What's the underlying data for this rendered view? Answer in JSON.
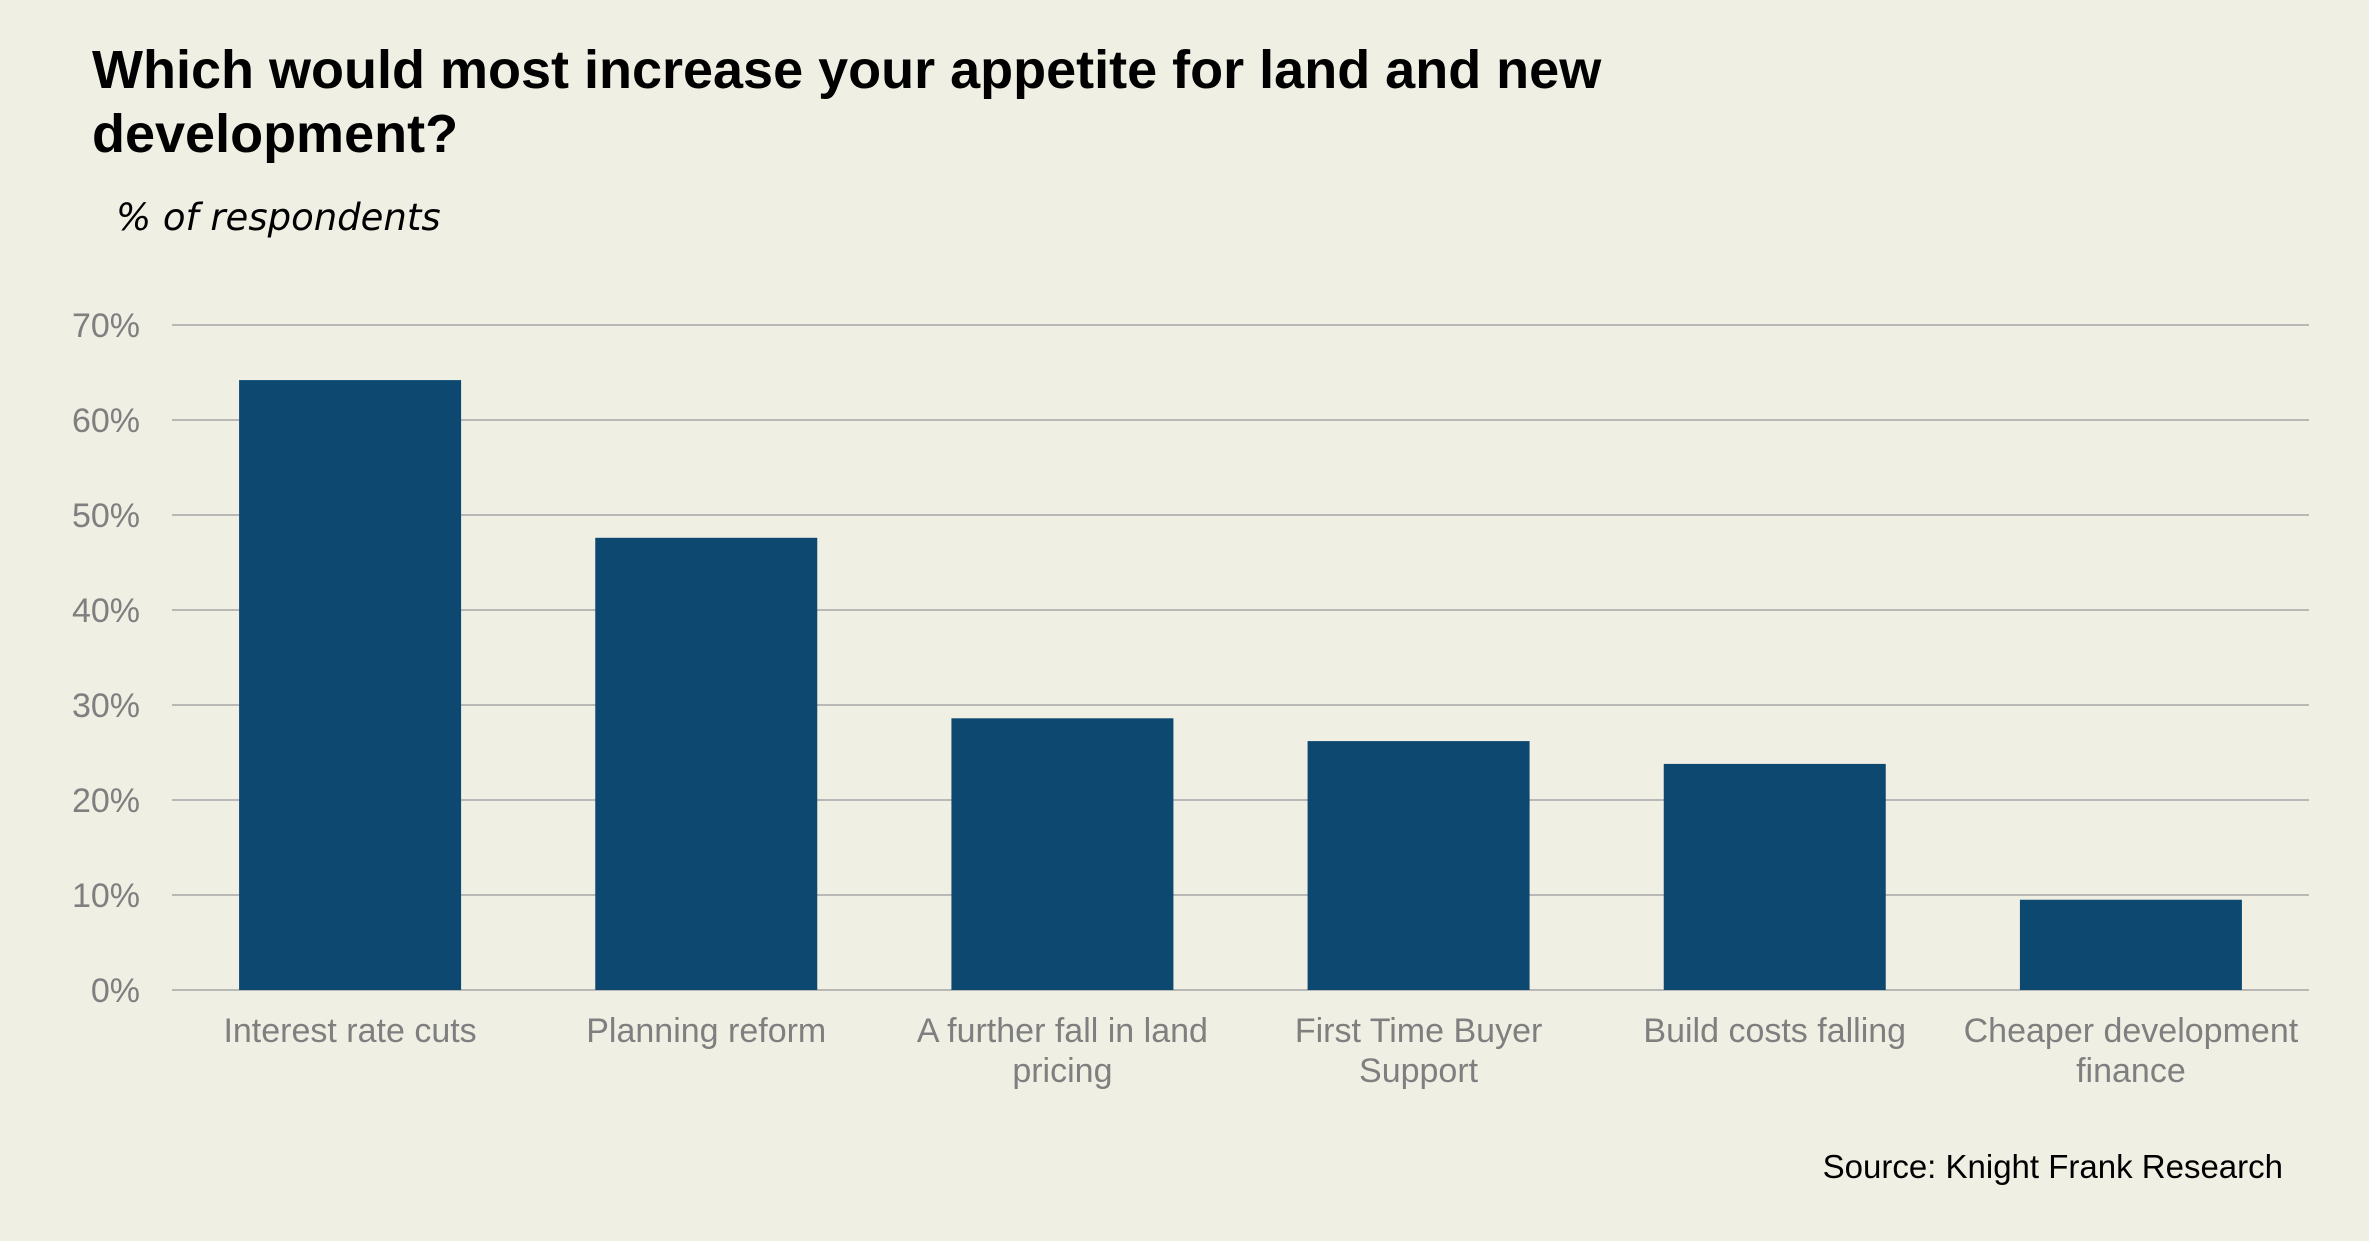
{
  "chart_data": {
    "type": "bar",
    "title": "Which would most increase your appetite for land and new development?",
    "subtitle": "% of respondents",
    "source": "Source: Knight Frank Research",
    "categories": [
      [
        "Interest rate cuts"
      ],
      [
        "Planning reform"
      ],
      [
        "A further fall in land",
        "pricing"
      ],
      [
        "First Time Buyer",
        "Support"
      ],
      [
        "Build costs falling"
      ],
      [
        "Cheaper development",
        "finance"
      ]
    ],
    "values": [
      64.2,
      47.6,
      28.6,
      26.2,
      23.8,
      9.5
    ],
    "ylim": [
      0,
      70
    ],
    "yticks": [
      0,
      10,
      20,
      30,
      40,
      50,
      60,
      70
    ],
    "ytick_suffix": "%",
    "grid": true,
    "bar_color": "#0c4870"
  }
}
